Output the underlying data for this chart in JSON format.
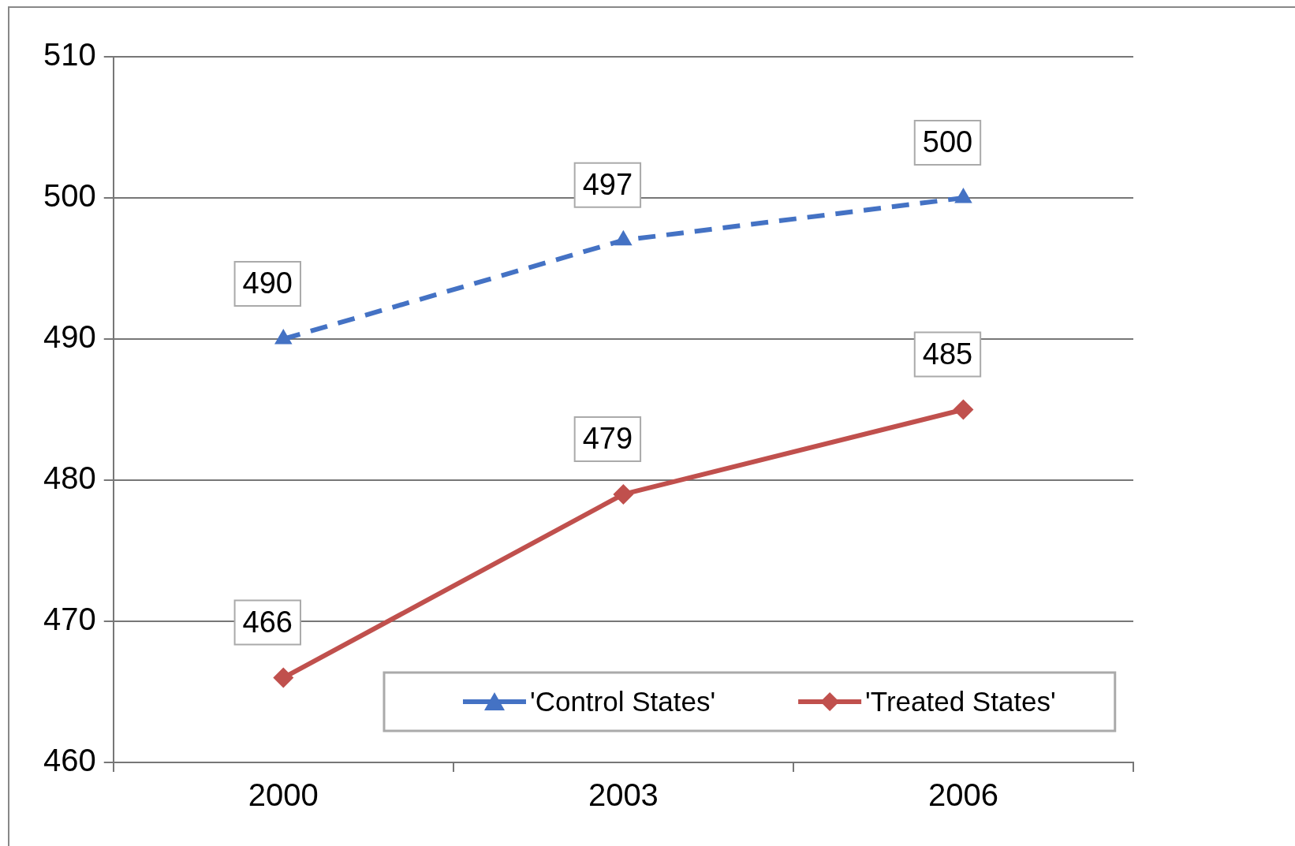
{
  "chart_data": {
    "type": "line",
    "categories": [
      "2000",
      "2003",
      "2006"
    ],
    "series": [
      {
        "name": "'Control States'",
        "color": "#4472c4",
        "values": [
          490,
          497,
          500
        ],
        "marker": "triangle",
        "line_style": "dashed"
      },
      {
        "name": "'Treated States'",
        "color": "#c0504d",
        "values": [
          466,
          479,
          485
        ],
        "marker": "diamond",
        "line_style": "solid"
      }
    ],
    "ylim": [
      460,
      510
    ],
    "yticks": [
      460,
      470,
      480,
      490,
      500,
      510
    ],
    "grid": "y",
    "legend": "bottom",
    "data_labels": true
  }
}
